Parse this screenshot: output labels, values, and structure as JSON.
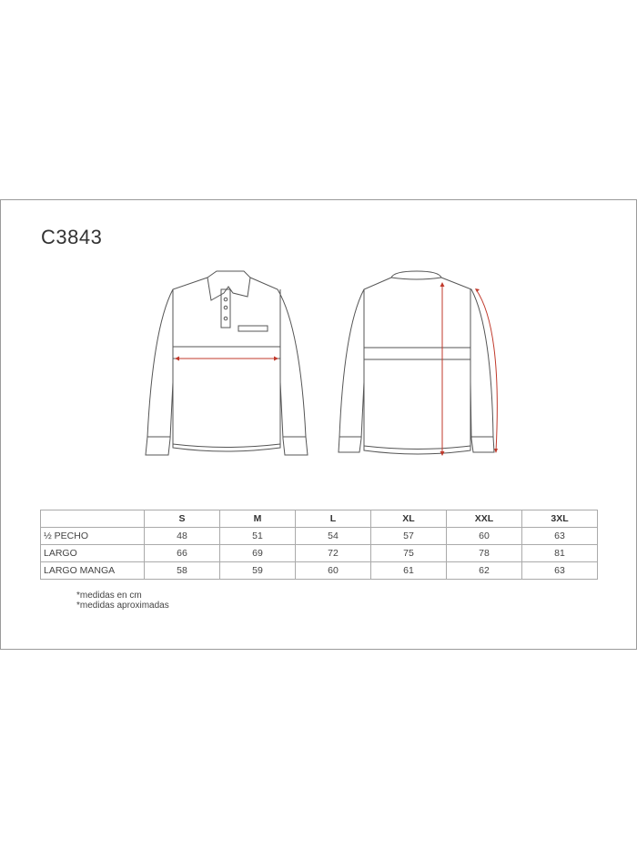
{
  "title": "C3843",
  "table": {
    "headers": [
      "",
      "S",
      "M",
      "L",
      "XL",
      "XXL",
      "3XL"
    ],
    "rows": [
      {
        "label": "½  PECHO",
        "values": [
          "48",
          "51",
          "54",
          "57",
          "60",
          "63"
        ]
      },
      {
        "label": "LARGO",
        "values": [
          "66",
          "69",
          "72",
          "75",
          "78",
          "81"
        ]
      },
      {
        "label": "LARGO MANGA",
        "values": [
          "58",
          "59",
          "60",
          "61",
          "62",
          "63"
        ]
      }
    ]
  },
  "notes": [
    "*medidas en cm",
    "*medidas aproximadas"
  ],
  "colors": {
    "measure_line": "#c0392b",
    "outline": "#555555"
  }
}
